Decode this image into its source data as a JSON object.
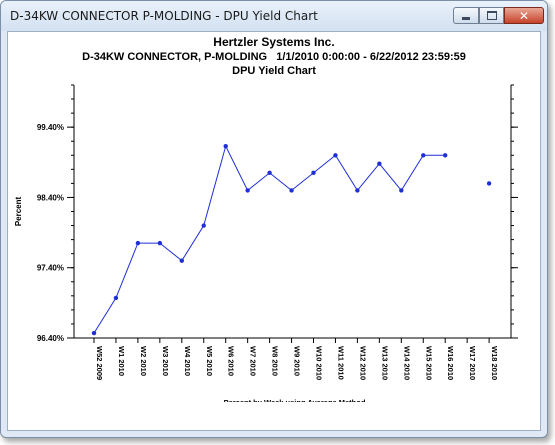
{
  "window": {
    "title": "D-34KW CONNECTOR  P-MOLDING - DPU Yield Chart",
    "minimize_label": "minimize",
    "maximize_label": "maximize",
    "close_label": "close"
  },
  "header": {
    "company": "Hertzler Systems Inc.",
    "subtitle": "D-34KW CONNECTOR, P-MOLDING   1/1/2010 0:00:00 - 6/22/2012 23:59:59",
    "chart_title": "DPU Yield Chart"
  },
  "chart_data": {
    "type": "line",
    "title": "DPU Yield Chart",
    "ylabel": "Percent",
    "xlabel": "Percent by Week using Average Method",
    "ylim": [
      96.4,
      100.0
    ],
    "y_tick_labels": [
      "99.40%",
      "98.40%",
      "97.40%",
      "96.40%"
    ],
    "categories": [
      "W52 2009",
      "W1 2010",
      "W2 2010",
      "W3 2010",
      "W4 2010",
      "W5 2010",
      "W6 2010",
      "W7 2010",
      "W8 2010",
      "W9 2010",
      "W10 2010",
      "W11 2010",
      "W12 2010",
      "W13 2010",
      "W14 2010",
      "W15 2010",
      "W16 2010",
      "W17 2010",
      "W18 2010"
    ],
    "values": [
      96.47,
      96.97,
      97.75,
      97.75,
      97.5,
      98.0,
      99.13,
      98.5,
      98.75,
      98.5,
      98.75,
      99.0,
      98.5,
      98.88,
      98.5,
      99.0,
      99.0,
      null,
      98.6
    ],
    "grid": false,
    "legend": "none",
    "line_color": "#1f2fd6"
  }
}
